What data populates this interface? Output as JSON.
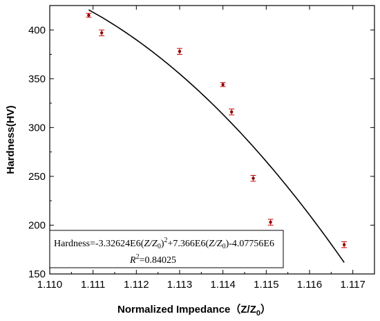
{
  "chart_data": {
    "type": "scatter",
    "xlabel": "Normalized Impedance（Z/Z",
    "xlabel_sub": "0",
    "xlabel_close": "）",
    "ylabel": "Hardness(HV)",
    "xlim": [
      1.11,
      1.1175
    ],
    "ylim": [
      150,
      425
    ],
    "x_ticks": [
      "1.110",
      "1.111",
      "1.112",
      "1.113",
      "1.114",
      "1.115",
      "1.116",
      "1.117"
    ],
    "y_ticks": [
      "150",
      "200",
      "250",
      "300",
      "350",
      "400"
    ],
    "points": [
      {
        "x": 1.1109,
        "y": 415,
        "err": 2
      },
      {
        "x": 1.1112,
        "y": 397,
        "err": 3
      },
      {
        "x": 1.113,
        "y": 378,
        "err": 3
      },
      {
        "x": 1.114,
        "y": 344,
        "err": 2
      },
      {
        "x": 1.1142,
        "y": 316,
        "err": 3
      },
      {
        "x": 1.1147,
        "y": 248,
        "err": 3
      },
      {
        "x": 1.1151,
        "y": 203,
        "err": 3
      },
      {
        "x": 1.1168,
        "y": 180,
        "err": 3
      }
    ],
    "fit": {
      "a": -3326240.0,
      "b": 7366000.0,
      "c": -4077560.0,
      "x_start": 1.1109,
      "x_end": 1.1168
    },
    "equation": {
      "part1": "Hardness=-3.32624E6(",
      "zz": "Z/Z",
      "sub": "0",
      "part2": ")",
      "sup": "2",
      "part3": "+7.366E6(",
      "part4": ")-4.07756E6",
      "r2_label": "R",
      "r2_sup": "2",
      "r2_value": "=0.84025"
    },
    "colors": {
      "point": "#8b0000",
      "errorbar": "#cc0000",
      "fit_line": "#000000",
      "axis": "#000000"
    },
    "grid": false
  }
}
